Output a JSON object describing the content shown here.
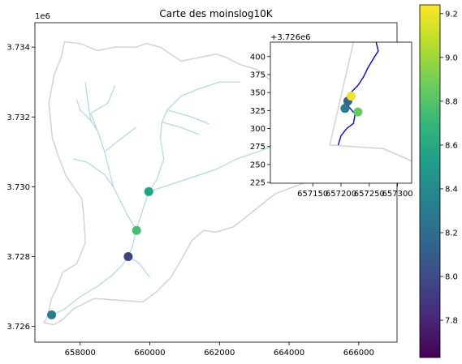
{
  "colors": {
    "watershed": "#d3d3d3",
    "streams": "#add8e6",
    "inset_stream": "#0000ff",
    "colormap": [
      "#440154",
      "#482878",
      "#3e4989",
      "#31688e",
      "#26828e",
      "#1f9e89",
      "#35b779",
      "#6ece58",
      "#b5de2b",
      "#fde725"
    ]
  },
  "chart_data": [
    {
      "type": "scatter",
      "role": "main-map",
      "title": "Carte des moinslog10K",
      "xlim": [
        656700,
        667100
      ],
      "ylim": [
        3725550,
        3734700
      ],
      "y_offset_text": "1e6",
      "xticks": [
        658000,
        660000,
        662000,
        664000,
        666000
      ],
      "xtick_labels": [
        "658000",
        "660000",
        "662000",
        "664000",
        "666000"
      ],
      "yticks": [
        3726000,
        3728000,
        3730000,
        3732000,
        3734000
      ],
      "ytick_labels": [
        "3.726",
        "3.728",
        "3.730",
        "3.732",
        "3.734"
      ],
      "points": [
        {
          "x": 657180,
          "y": 3726330,
          "value": 8.3
        },
        {
          "x": 659380,
          "y": 3728000,
          "value": 7.95
        },
        {
          "x": 659620,
          "y": 3728750,
          "value": 8.75
        },
        {
          "x": 659970,
          "y": 3729860,
          "value": 8.55
        }
      ],
      "watershed_outline": [
        [
          656950,
          3726100
        ],
        [
          657050,
          3726250
        ],
        [
          657180,
          3726800
        ],
        [
          657350,
          3727150
        ],
        [
          657500,
          3727550
        ],
        [
          657900,
          3727800
        ],
        [
          658150,
          3728400
        ],
        [
          658100,
          3729200
        ],
        [
          658050,
          3729650
        ],
        [
          657600,
          3730300
        ],
        [
          657400,
          3730800
        ],
        [
          657200,
          3731400
        ],
        [
          657150,
          3731900
        ],
        [
          657100,
          3732400
        ],
        [
          657250,
          3733200
        ],
        [
          657450,
          3733700
        ],
        [
          657550,
          3734150
        ],
        [
          658000,
          3734100
        ],
        [
          658500,
          3733900
        ],
        [
          659000,
          3734000
        ],
        [
          659600,
          3734000
        ],
        [
          659900,
          3734100
        ],
        [
          660300,
          3734000
        ],
        [
          660900,
          3733600
        ],
        [
          661400,
          3733700
        ],
        [
          661900,
          3733800
        ],
        [
          662200,
          3733700
        ],
        [
          662600,
          3733500
        ],
        [
          663100,
          3733350
        ],
        [
          663400,
          3733100
        ],
        [
          664000,
          3732900
        ],
        [
          664800,
          3732500
        ],
        [
          665600,
          3731600
        ],
        [
          665700,
          3731000
        ],
        [
          665300,
          3730500
        ],
        [
          664800,
          3730250
        ],
        [
          663600,
          3729800
        ],
        [
          662400,
          3728850
        ],
        [
          661900,
          3728700
        ],
        [
          661550,
          3728750
        ],
        [
          661200,
          3728450
        ],
        [
          660900,
          3727900
        ],
        [
          660600,
          3727400
        ],
        [
          660200,
          3727000
        ],
        [
          659800,
          3726700
        ],
        [
          659100,
          3726750
        ],
        [
          658400,
          3726800
        ],
        [
          657800,
          3726500
        ],
        [
          657500,
          3726200
        ],
        [
          657250,
          3726050
        ],
        [
          656950,
          3726100
        ]
      ],
      "streams": [
        [
          [
            657150,
            3726300
          ],
          [
            657550,
            3726500
          ],
          [
            658000,
            3726850
          ],
          [
            658500,
            3727150
          ],
          [
            658900,
            3727450
          ],
          [
            659200,
            3727750
          ],
          [
            659380,
            3728000
          ],
          [
            659500,
            3728300
          ],
          [
            659600,
            3728750
          ],
          [
            659750,
            3729200
          ],
          [
            659970,
            3729860
          ],
          [
            660200,
            3730200
          ],
          [
            660400,
            3730800
          ],
          [
            660300,
            3731400
          ],
          [
            660350,
            3731850
          ],
          [
            660500,
            3732200
          ],
          [
            660900,
            3732600
          ],
          [
            661400,
            3732800
          ],
          [
            662000,
            3733000
          ],
          [
            662600,
            3733000
          ]
        ],
        [
          [
            659970,
            3729860
          ],
          [
            660700,
            3730100
          ],
          [
            661300,
            3730300
          ],
          [
            661900,
            3730500
          ],
          [
            662500,
            3730800
          ],
          [
            663100,
            3731000
          ],
          [
            663500,
            3731150
          ]
        ],
        [
          [
            659620,
            3728750
          ],
          [
            659350,
            3729200
          ],
          [
            659150,
            3729600
          ],
          [
            658950,
            3730000
          ],
          [
            658700,
            3730350
          ],
          [
            658200,
            3730700
          ],
          [
            657800,
            3730800
          ]
        ],
        [
          [
            658950,
            3730000
          ],
          [
            658800,
            3730600
          ],
          [
            658700,
            3731000
          ],
          [
            658500,
            3731600
          ],
          [
            658300,
            3731900
          ],
          [
            658000,
            3732200
          ],
          [
            657900,
            3732500
          ]
        ],
        [
          [
            658700,
            3731000
          ],
          [
            659200,
            3731400
          ],
          [
            659600,
            3731700
          ]
        ],
        [
          [
            658500,
            3731600
          ],
          [
            658300,
            3732100
          ],
          [
            658800,
            3732400
          ],
          [
            659000,
            3732900
          ]
        ],
        [
          [
            658300,
            3731900
          ],
          [
            658200,
            3732600
          ],
          [
            658150,
            3733000
          ]
        ],
        [
          [
            659380,
            3728000
          ],
          [
            659700,
            3727800
          ],
          [
            660000,
            3727400
          ]
        ],
        [
          [
            660350,
            3731850
          ],
          [
            660900,
            3731700
          ],
          [
            661400,
            3731500
          ]
        ],
        [
          [
            660500,
            3732200
          ],
          [
            661200,
            3732000
          ],
          [
            661700,
            3731800
          ]
        ]
      ]
    },
    {
      "type": "scatter",
      "role": "inset-map",
      "xlim": [
        657075,
        657325
      ],
      "ylim": [
        224,
        420
      ],
      "offset_text": "+3.726e6",
      "xticks": [
        657150,
        657200,
        657250,
        657300
      ],
      "xtick_labels": [
        "657150",
        "657200",
        "657250",
        "657300"
      ],
      "yticks": [
        225,
        250,
        275,
        300,
        325,
        350,
        375,
        400
      ],
      "ytick_labels": [
        "225",
        "250",
        "275",
        "300",
        "325",
        "350",
        "375",
        "400"
      ],
      "points": [
        {
          "x": 657207,
          "y": 328,
          "value": 8.3
        },
        {
          "x": 657212,
          "y": 338,
          "value": 8.15
        },
        {
          "x": 657218,
          "y": 345,
          "value": 9.2
        },
        {
          "x": 657230,
          "y": 323,
          "value": 8.85
        }
      ],
      "outline": [
        [
          657225,
          430
        ],
        [
          657180,
          277
        ],
        [
          657275,
          272
        ],
        [
          657325,
          255
        ]
      ],
      "stream": [
        [
          657195,
          277
        ],
        [
          657200,
          290
        ],
        [
          657210,
          300
        ],
        [
          657222,
          307
        ],
        [
          657225,
          320
        ],
        [
          657214,
          330
        ],
        [
          657210,
          342
        ],
        [
          657220,
          352
        ],
        [
          657230,
          360
        ],
        [
          657240,
          372
        ],
        [
          657248,
          385
        ],
        [
          657258,
          398
        ],
        [
          657266,
          408
        ],
        [
          657262,
          420
        ]
      ]
    },
    {
      "type": "heatmap",
      "role": "colorbar",
      "range": [
        7.63,
        9.24
      ],
      "ticks": [
        7.8,
        8.0,
        8.2,
        8.4,
        8.6,
        8.8,
        9.0,
        9.2
      ],
      "tick_labels": [
        "7.8",
        "8.0",
        "8.2",
        "8.4",
        "8.6",
        "8.8",
        "9.0",
        "9.2"
      ]
    }
  ]
}
